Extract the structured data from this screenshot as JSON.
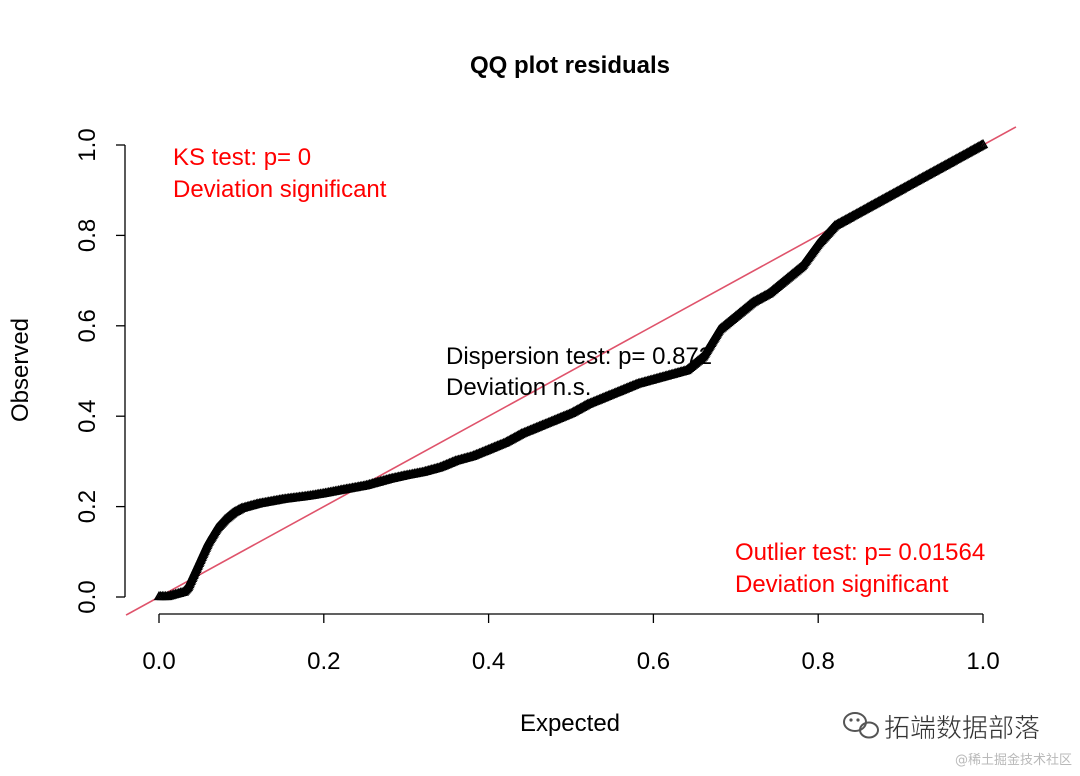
{
  "chart_data": {
    "type": "scatter",
    "title": "QQ plot residuals",
    "xlabel": "Expected",
    "ylabel": "Observed",
    "xlim": [
      0,
      1
    ],
    "ylim": [
      0,
      1
    ],
    "x_ticks": [
      "0.0",
      "0.2",
      "0.4",
      "0.6",
      "0.8",
      "1.0"
    ],
    "y_ticks": [
      "0.0",
      "0.2",
      "0.4",
      "0.6",
      "0.8",
      "1.0"
    ],
    "marker": "triangle",
    "reference_line": {
      "label": "y = x",
      "color": "#DF536B"
    },
    "series": [
      {
        "name": "residuals",
        "color": "#000000",
        "points": [
          [
            0.0,
            0.0
          ],
          [
            0.01,
            0.0
          ],
          [
            0.02,
            0.005
          ],
          [
            0.03,
            0.01
          ],
          [
            0.035,
            0.02
          ],
          [
            0.04,
            0.04
          ],
          [
            0.045,
            0.06
          ],
          [
            0.05,
            0.08
          ],
          [
            0.055,
            0.1
          ],
          [
            0.06,
            0.12
          ],
          [
            0.07,
            0.15
          ],
          [
            0.08,
            0.17
          ],
          [
            0.09,
            0.185
          ],
          [
            0.1,
            0.195
          ],
          [
            0.12,
            0.205
          ],
          [
            0.15,
            0.215
          ],
          [
            0.18,
            0.222
          ],
          [
            0.2,
            0.228
          ],
          [
            0.22,
            0.235
          ],
          [
            0.25,
            0.245
          ],
          [
            0.28,
            0.26
          ],
          [
            0.3,
            0.268
          ],
          [
            0.32,
            0.275
          ],
          [
            0.34,
            0.285
          ],
          [
            0.36,
            0.3
          ],
          [
            0.38,
            0.31
          ],
          [
            0.4,
            0.325
          ],
          [
            0.42,
            0.34
          ],
          [
            0.44,
            0.36
          ],
          [
            0.46,
            0.375
          ],
          [
            0.48,
            0.39
          ],
          [
            0.5,
            0.405
          ],
          [
            0.52,
            0.425
          ],
          [
            0.54,
            0.44
          ],
          [
            0.56,
            0.455
          ],
          [
            0.58,
            0.47
          ],
          [
            0.6,
            0.48
          ],
          [
            0.62,
            0.49
          ],
          [
            0.64,
            0.5
          ],
          [
            0.66,
            0.53
          ],
          [
            0.68,
            0.59
          ],
          [
            0.7,
            0.62
          ],
          [
            0.72,
            0.65
          ],
          [
            0.74,
            0.67
          ],
          [
            0.76,
            0.7
          ],
          [
            0.78,
            0.73
          ],
          [
            0.8,
            0.78
          ],
          [
            0.82,
            0.82
          ],
          [
            0.84,
            0.84
          ],
          [
            0.86,
            0.86
          ],
          [
            0.88,
            0.88
          ],
          [
            0.9,
            0.9
          ],
          [
            0.92,
            0.92
          ],
          [
            0.94,
            0.94
          ],
          [
            0.96,
            0.96
          ],
          [
            0.98,
            0.98
          ],
          [
            1.0,
            1.0
          ]
        ]
      }
    ],
    "annotations": {
      "ks": {
        "line1": "KS test: p= 0",
        "line2": "Deviation  significant",
        "color": "#FF0000"
      },
      "dispersion": {
        "line1": "Dispersion test: p= 0.872",
        "line2": "Deviation  n.s.",
        "color": "#000000"
      },
      "outlier": {
        "line1": "Outlier test: p= 0.01564",
        "line2": "Deviation  significant",
        "color": "#FF0000"
      }
    }
  },
  "watermark": {
    "brand": "拓端数据部落",
    "sub": "@稀土掘金技术社区"
  }
}
